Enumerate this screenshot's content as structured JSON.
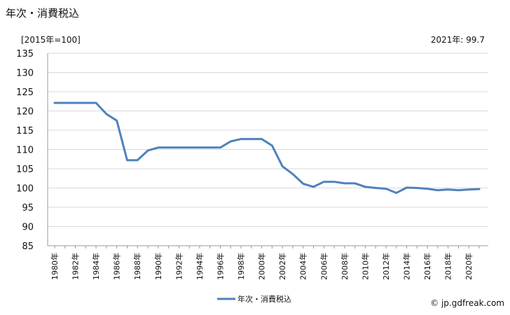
{
  "title": "年次・消費税込",
  "unit_label": "[2015年=100]",
  "latest_note": "2021年: 99.7",
  "source": "© jp.gdfreak.com",
  "colors": {
    "line": "#4f81bd",
    "grid": "#d9d9d9",
    "axis": "#999999"
  },
  "chart_data": {
    "type": "line",
    "ylim": [
      85,
      135
    ],
    "yticks": [
      85,
      90,
      95,
      100,
      105,
      110,
      115,
      120,
      125,
      130,
      135
    ],
    "x": [
      1980,
      1981,
      1982,
      1983,
      1984,
      1985,
      1986,
      1987,
      1988,
      1989,
      1990,
      1991,
      1992,
      1993,
      1994,
      1995,
      1996,
      1997,
      1998,
      1999,
      2000,
      2001,
      2002,
      2003,
      2004,
      2005,
      2006,
      2007,
      2008,
      2009,
      2010,
      2011,
      2012,
      2013,
      2014,
      2015,
      2016,
      2017,
      2018,
      2019,
      2020,
      2021
    ],
    "xtick_labels": [
      "1980年",
      "1982年",
      "1984年",
      "1986年",
      "1988年",
      "1990年",
      "1992年",
      "1994年",
      "1996年",
      "1998年",
      "2000年",
      "2002年",
      "2004年",
      "2006年",
      "2008年",
      "2010年",
      "2012年",
      "2014年",
      "2016年",
      "2018年",
      "2020年"
    ],
    "series": [
      {
        "name": "年次・消費税込",
        "values": [
          122.1,
          122.1,
          122.1,
          122.1,
          122.1,
          119.2,
          117.5,
          107.2,
          107.2,
          109.7,
          110.5,
          110.5,
          110.5,
          110.5,
          110.5,
          110.5,
          110.5,
          112.1,
          112.7,
          112.7,
          112.7,
          111.0,
          105.6,
          103.6,
          101.1,
          100.3,
          101.6,
          101.6,
          101.2,
          101.2,
          100.3,
          100.0,
          99.8,
          98.7,
          100.1,
          100.0,
          99.8,
          99.4,
          99.6,
          99.4,
          99.6,
          99.7
        ]
      }
    ]
  }
}
